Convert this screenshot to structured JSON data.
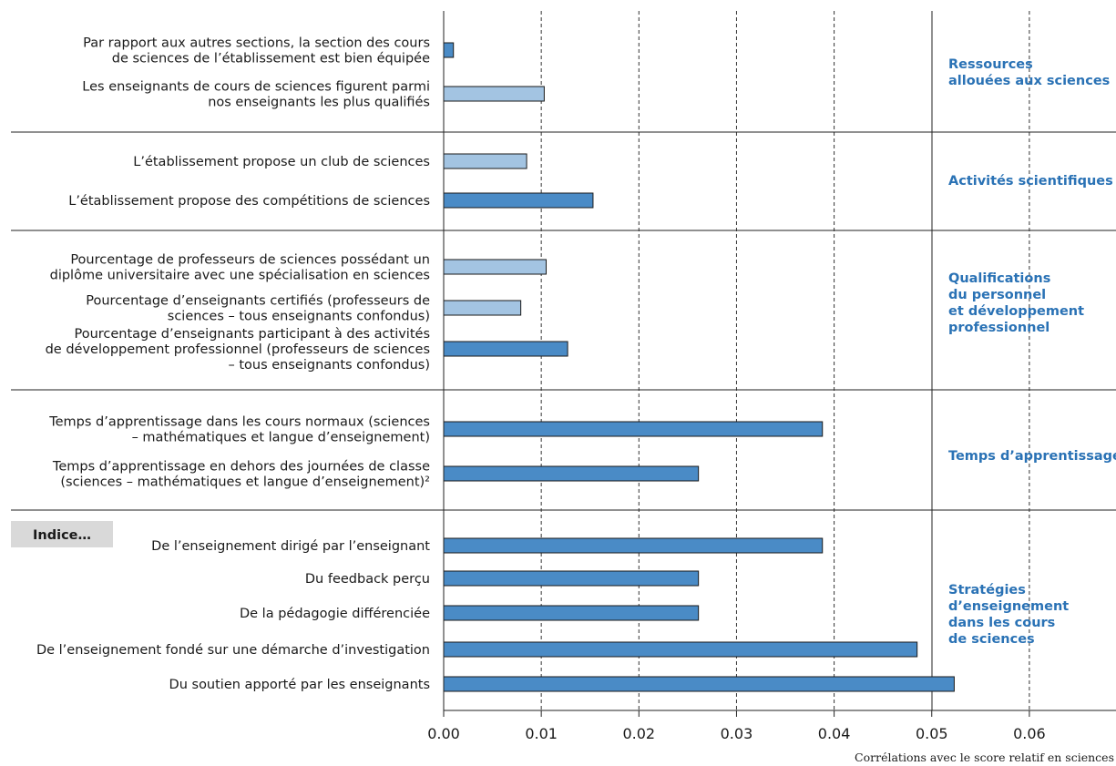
{
  "chart_data": {
    "type": "bar",
    "orientation": "horizontal",
    "x_axis": {
      "title": "Corrélations avec le score relatif en sciences",
      "ticks": [
        "0.00",
        "0.01",
        "0.02",
        "0.03",
        "0.04",
        "0.05",
        "0.06"
      ],
      "range": [
        0,
        0.07
      ],
      "grid": "dashed vertical"
    },
    "note_label": "Indice…",
    "groups": [
      {
        "name": "Ressources\nallouées aux sciences",
        "items": [
          {
            "label": "Par rapport aux autres sections, la section des cours\nde sciences de l’établissement est bien équipée",
            "value": 0.001,
            "significant": true
          },
          {
            "label": "Les enseignants de cours de sciences figurent parmi\nnos enseignants les plus qualifiés",
            "value": 0.0103,
            "significant": false
          }
        ]
      },
      {
        "name": "Activités scientifiques",
        "items": [
          {
            "label": "L’établissement propose un club de sciences",
            "value": 0.0085,
            "significant": false
          },
          {
            "label": "L’établissement propose des compétitions de sciences",
            "value": 0.0153,
            "significant": true
          }
        ]
      },
      {
        "name": "Qualifications\ndu personnel\net développement\nprofessionnel",
        "items": [
          {
            "label": "Pourcentage de professeurs de sciences possédant un\ndiplôme universitaire avec une spécialisation en sciences",
            "value": 0.0105,
            "significant": false
          },
          {
            "label": "Pourcentage d’enseignants certifiés (professeurs de\nsciences – tous enseignants confondus)",
            "value": 0.0079,
            "significant": false
          },
          {
            "label": "Pourcentage d’enseignants participant à des activités\nde développement professionnel (professeurs de sciences\n– tous enseignants confondus)",
            "value": 0.0127,
            "significant": true
          }
        ]
      },
      {
        "name": "Temps d’apprentissage",
        "items": [
          {
            "label": "Temps d’apprentissage dans les cours normaux (sciences\n– mathématiques et langue d’enseignement)",
            "value": 0.0388,
            "significant": true
          },
          {
            "label": "Temps d’apprentissage en dehors des journées de classe\n(sciences – mathématiques et langue d’enseignement)²",
            "value": 0.0261,
            "significant": true
          }
        ]
      },
      {
        "name": "Stratégies\nd’enseignement\ndans les cours\nde sciences",
        "items": [
          {
            "label": "De l’enseignement dirigé par l’enseignant",
            "value": 0.0388,
            "significant": true
          },
          {
            "label": "Du feedback perçu",
            "value": 0.0261,
            "significant": true
          },
          {
            "label": "De la pédagogie différenciée",
            "value": 0.0261,
            "significant": true
          },
          {
            "label": "De l’enseignement fondé sur une démarche d’investigation",
            "value": 0.0485,
            "significant": true
          },
          {
            "label": "Du soutien apporté par les enseignants",
            "value": 0.0523,
            "significant": true
          }
        ]
      }
    ],
    "colors": {
      "significant": "#4a8bc6",
      "not_significant": "#a3c4e2",
      "group_label": "#2a72b5",
      "note_box": "#d9d9d9"
    }
  }
}
